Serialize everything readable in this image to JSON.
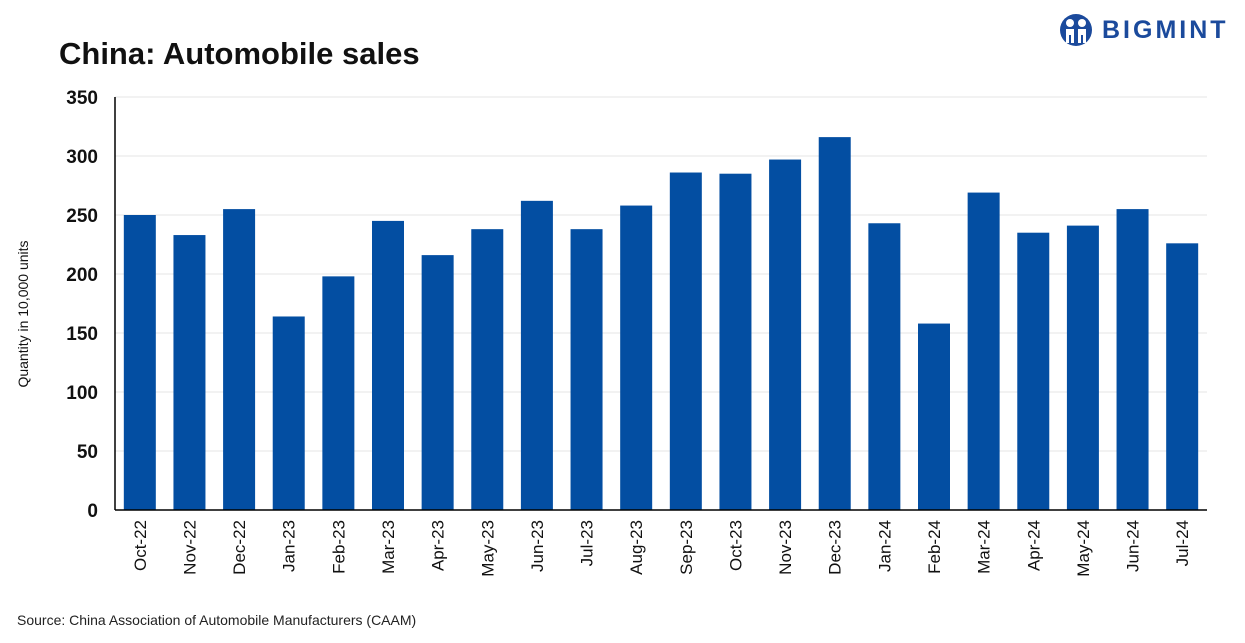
{
  "logo": {
    "text": "BIGMINT",
    "color": "#1b4a9c"
  },
  "source": "Source: China Association of Automobile Manufacturers (CAAM)",
  "chart_data": {
    "type": "bar",
    "title": "China: Automobile sales",
    "xlabel": "",
    "ylabel": "Quantity in 10,000 units",
    "ylim": [
      0,
      350
    ],
    "yticks": [
      0,
      50,
      100,
      150,
      200,
      250,
      300,
      350
    ],
    "grid": true,
    "color": "#034ea2",
    "categories": [
      "Oct-22",
      "Nov-22",
      "Dec-22",
      "Jan-23",
      "Feb-23",
      "Mar-23",
      "Apr-23",
      "May-23",
      "Jun-23",
      "Jul-23",
      "Aug-23",
      "Sep-23",
      "Oct-23",
      "Nov-23",
      "Dec-23",
      "Jan-24",
      "Feb-24",
      "Mar-24",
      "Apr-24",
      "May-24",
      "Jun-24",
      "Jul-24"
    ],
    "values": [
      250,
      233,
      255,
      164,
      198,
      245,
      216,
      238,
      262,
      238,
      258,
      286,
      285,
      297,
      316,
      243,
      158,
      269,
      235,
      241,
      255,
      226
    ]
  }
}
